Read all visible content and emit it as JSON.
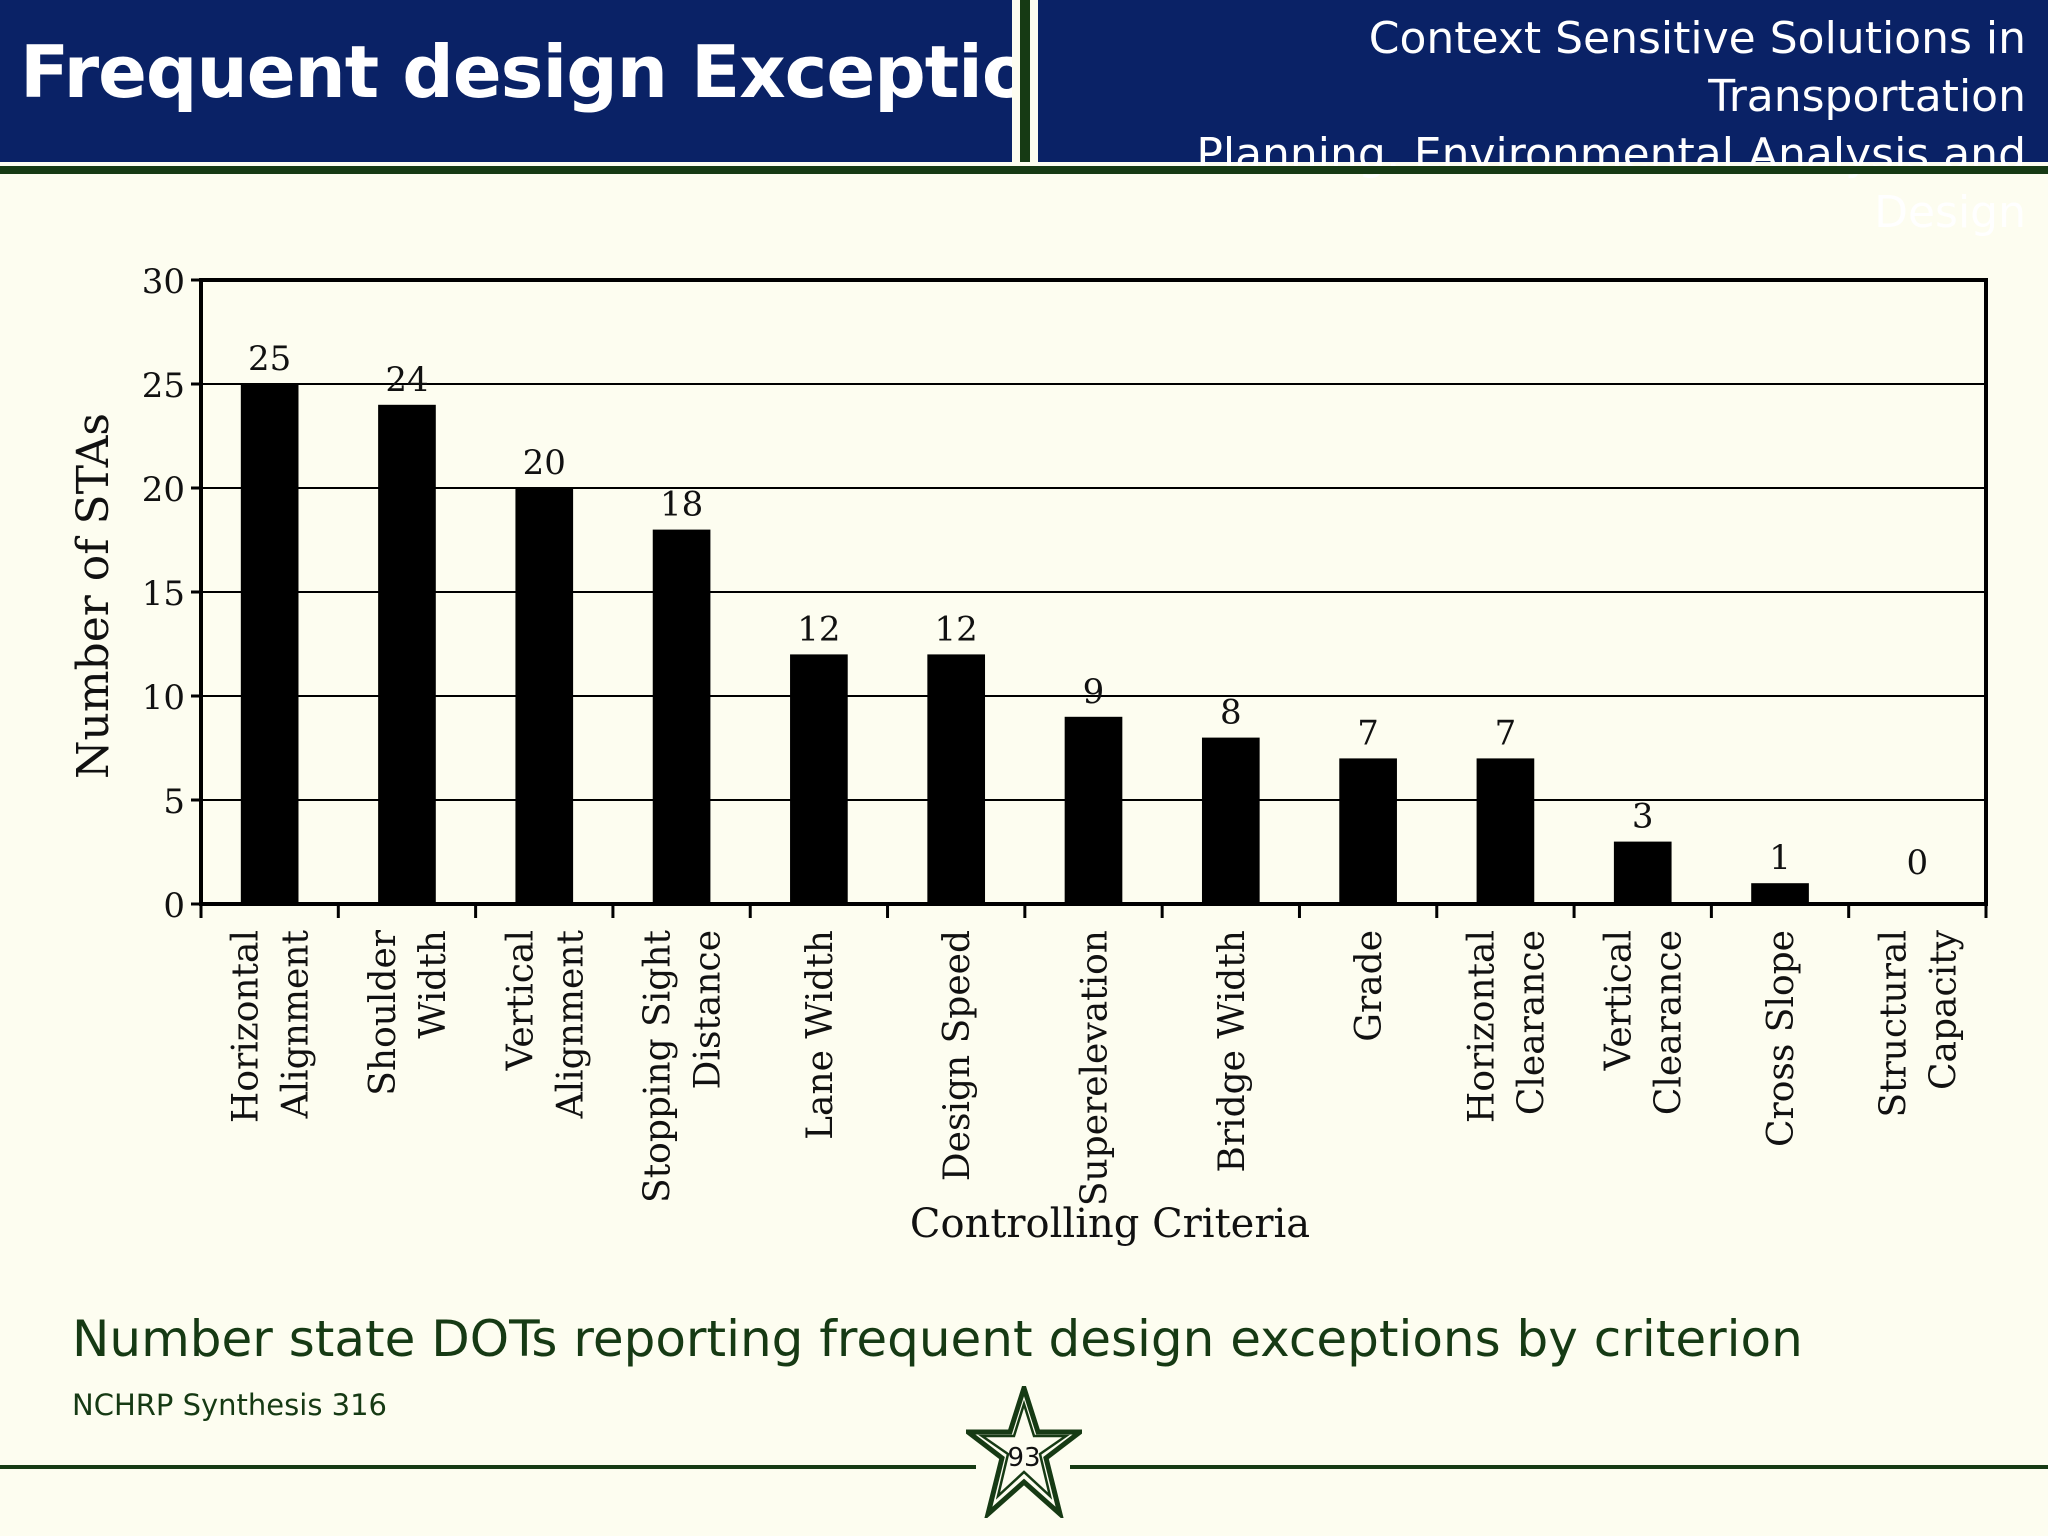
{
  "header": {
    "title": "Frequent design Exceptions",
    "subtitle_line1": "Context Sensitive Solutions in Transportation",
    "subtitle_line2": "Planning, Environmental Analysis and Design"
  },
  "chart_data": {
    "type": "bar",
    "categories": [
      [
        "Horizontal",
        "Alignment"
      ],
      [
        "Shoulder",
        "Width"
      ],
      [
        "Vertical",
        "Alignment"
      ],
      [
        "Stopping Sight",
        "Distance"
      ],
      [
        "Lane Width"
      ],
      [
        "Design Speed"
      ],
      [
        "Superelevation"
      ],
      [
        "Bridge Width"
      ],
      [
        "Grade"
      ],
      [
        "Horizontal",
        "Clearance"
      ],
      [
        "Vertical",
        "Clearance"
      ],
      [
        "Cross Slope"
      ],
      [
        "Structural",
        "Capacity"
      ]
    ],
    "values": [
      25,
      24,
      20,
      18,
      12,
      12,
      9,
      8,
      7,
      7,
      3,
      1,
      0
    ],
    "xlabel": "Controlling Criteria",
    "ylabel": "Number of STAs",
    "ylim": [
      0,
      30
    ],
    "yticks": [
      0,
      5,
      10,
      15,
      20,
      25,
      30
    ],
    "grid": true,
    "data_labels": true,
    "bar_color": "#000000"
  },
  "caption": "Number state DOTs reporting frequent design exceptions by criterion",
  "source": "NCHRP Synthesis 316",
  "page_number": "93",
  "colors": {
    "header_bg": "#0a2266",
    "accent_green": "#163a14",
    "page_bg": "#fdfdf0"
  }
}
